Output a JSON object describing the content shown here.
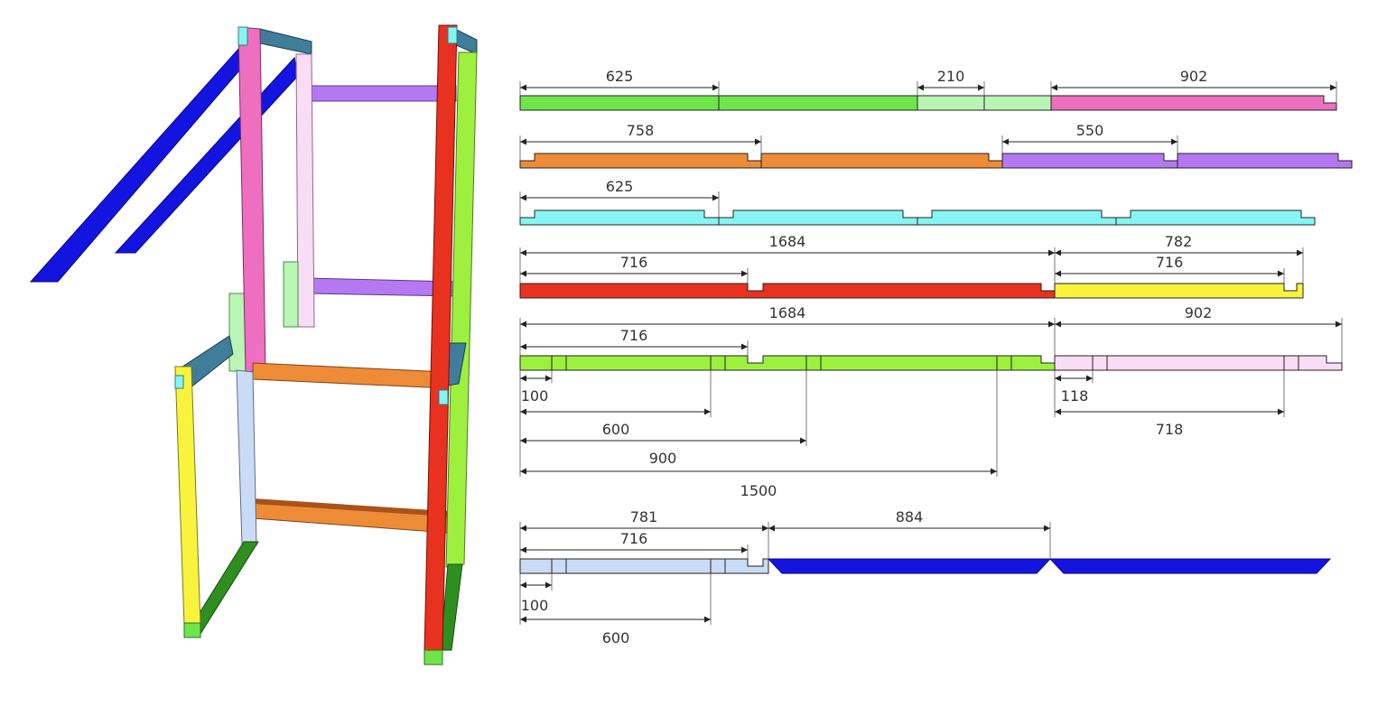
{
  "colors": {
    "green": "#6ee64a",
    "light_green": "#b9f5b4",
    "pink": "#ee6fbf",
    "orange": "#ee8b36",
    "purple": "#b479f2",
    "cyan": "#86f5f3",
    "red": "#e8311f",
    "yellow": "#f8f33c",
    "lime": "#9ef03f",
    "light_pink": "#f9dcf5",
    "light_blue": "#cadcf5",
    "blue": "#1414e0",
    "dark_green": "#2f8f1e",
    "steel": "#3f7d9a"
  },
  "dimensions": {
    "row1": {
      "d625": "625",
      "d210": "210",
      "d902": "902"
    },
    "row2": {
      "d758": "758",
      "d550": "550"
    },
    "row3": {
      "d625": "625"
    },
    "row4": {
      "d1684": "1684",
      "d716": "716",
      "d782": "782",
      "d716b": "716"
    },
    "row5": {
      "d1684": "1684",
      "d716": "716",
      "d902": "902",
      "d100": "100",
      "d118": "118",
      "d600": "600",
      "d718": "718",
      "d900": "900",
      "d1500": "1500"
    },
    "row6": {
      "d781": "781",
      "d716": "716",
      "d884": "884",
      "d100": "100",
      "d600": "600"
    }
  }
}
